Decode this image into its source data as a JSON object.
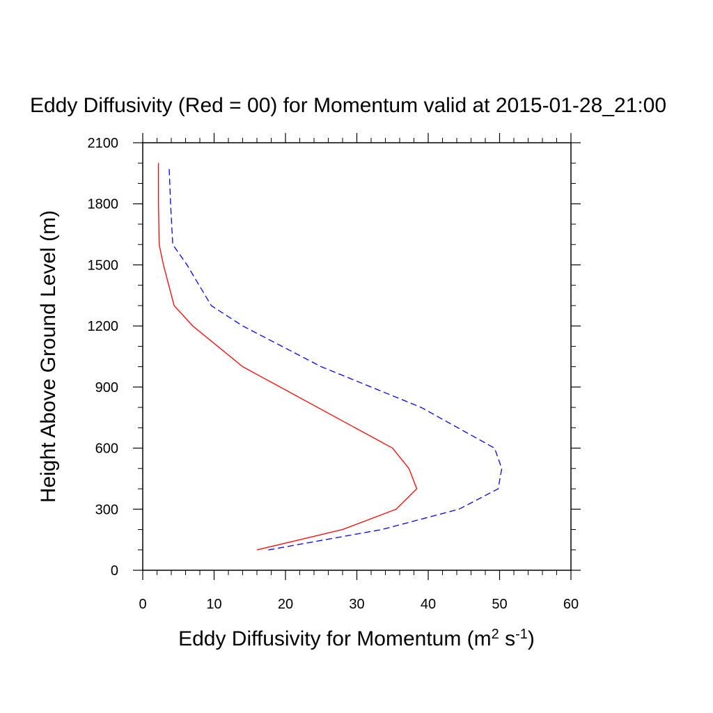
{
  "chart_data": {
    "type": "line",
    "title": "Eddy Diffusivity (Red = 00) for Momentum valid at 2015-01-28_21:00",
    "xlabel": {
      "base": "Eddy Diffusivity for Momentum (m",
      "sup1": "2",
      "mid": " s",
      "sup2": "-1",
      "end": ")"
    },
    "ylabel": "Height Above Ground Level (m)",
    "xlim": [
      0,
      60
    ],
    "ylim": [
      0,
      2100
    ],
    "xticks": [
      0,
      10,
      20,
      30,
      40,
      50,
      60
    ],
    "yticks": [
      0,
      300,
      600,
      900,
      1200,
      1500,
      1800,
      2100
    ],
    "grid": false,
    "series": [
      {
        "color": "#ff0000",
        "dash": "solid",
        "points": [
          [
            16.0,
            100
          ],
          [
            28.0,
            200
          ],
          [
            35.5,
            300
          ],
          [
            38.4,
            400
          ],
          [
            37.3,
            500
          ],
          [
            35.0,
            600
          ],
          [
            14.0,
            1000
          ],
          [
            7.0,
            1200
          ],
          [
            4.4,
            1300
          ],
          [
            2.9,
            1500
          ],
          [
            2.3,
            1600
          ],
          [
            2.2,
            1800
          ],
          [
            2.2,
            2000
          ]
        ]
      },
      {
        "color": "#0000ff",
        "dash": "dashed",
        "points": [
          [
            17.6,
            100
          ],
          [
            33.5,
            200
          ],
          [
            44.3,
            300
          ],
          [
            49.8,
            400
          ],
          [
            50.3,
            500
          ],
          [
            49.3,
            600
          ],
          [
            39.0,
            800
          ],
          [
            25.0,
            1000
          ],
          [
            14.0,
            1200
          ],
          [
            9.6,
            1300
          ],
          [
            6.2,
            1500
          ],
          [
            4.2,
            1600
          ],
          [
            3.9,
            1800
          ],
          [
            3.7,
            1980
          ]
        ]
      }
    ]
  }
}
